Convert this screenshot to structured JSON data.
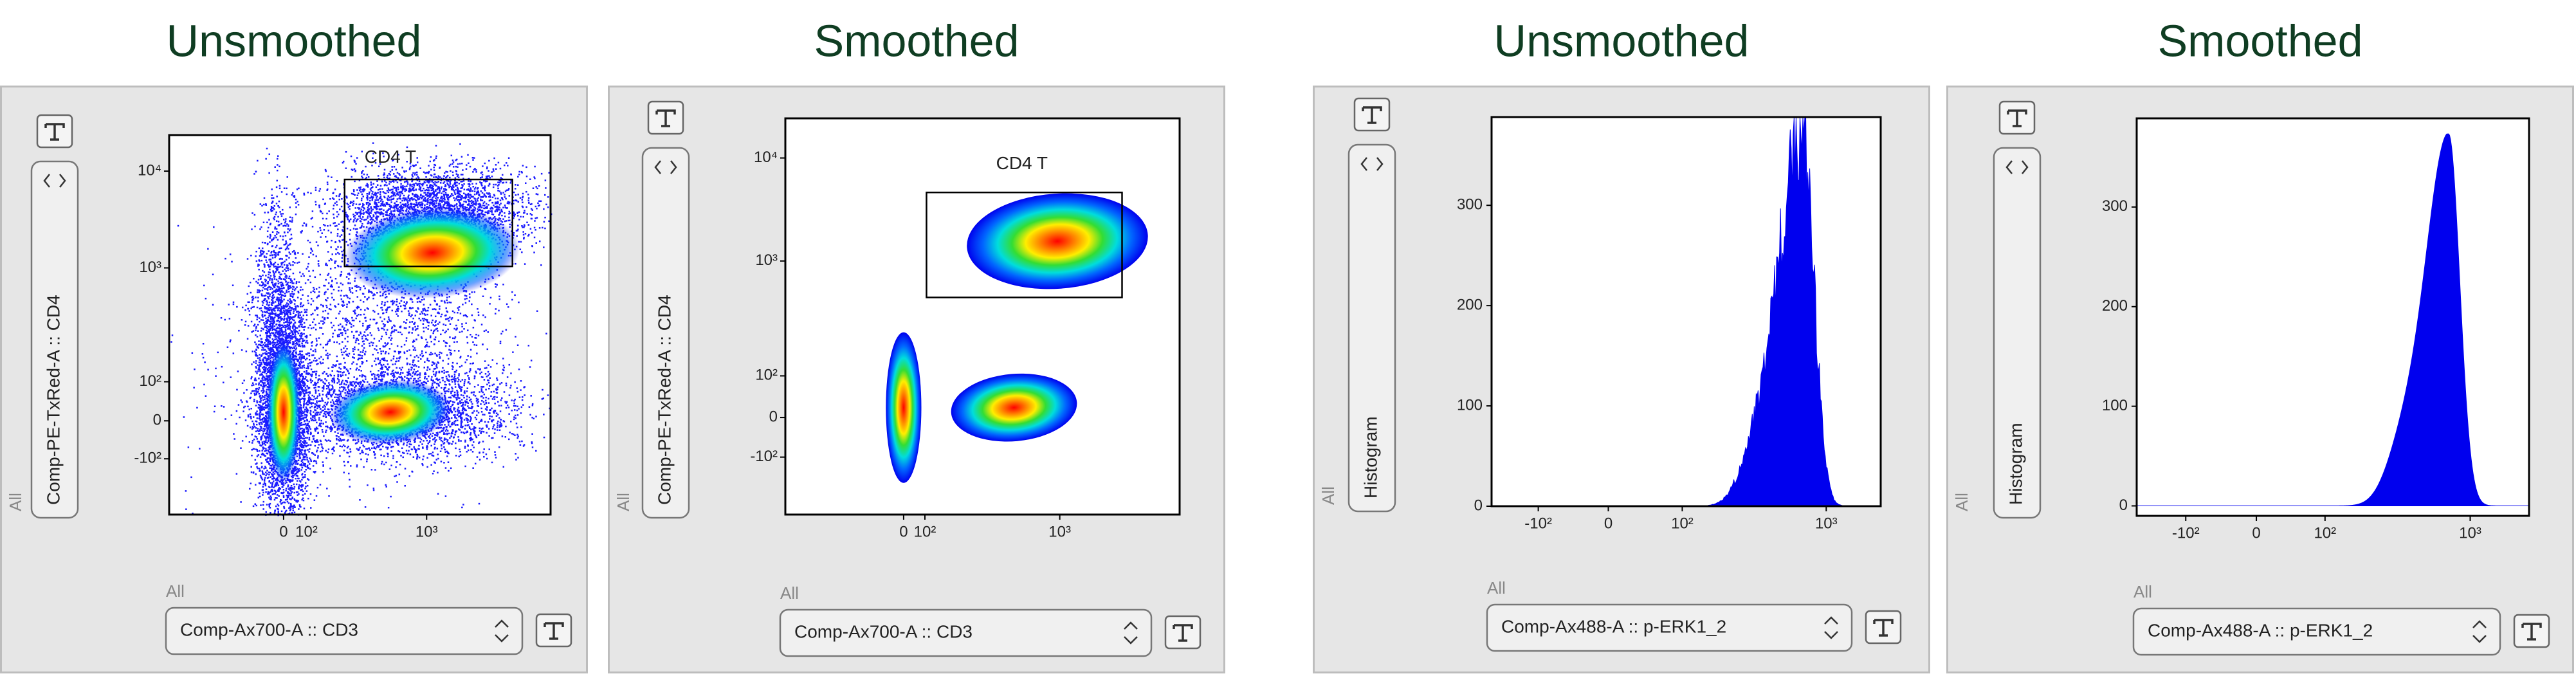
{
  "panels": [
    {
      "title": "Unsmoothed",
      "y_group": "All",
      "y_axis": "Comp-PE-TxRed-A :: CD4",
      "x_group": "All",
      "x_axis": "Comp-Ax700-A :: CD3",
      "gate": "CD4 T",
      "yticks": [
        "10⁴",
        "10³",
        "10²",
        "0",
        "-10²"
      ],
      "xticks": [
        "0",
        "10²",
        "10³"
      ]
    },
    {
      "title": "Smoothed",
      "y_group": "All",
      "y_axis": "Comp-PE-TxRed-A :: CD4",
      "x_group": "All",
      "x_axis": "Comp-Ax700-A :: CD3",
      "gate": "CD4 T",
      "yticks": [
        "10⁴",
        "10³",
        "10²",
        "0",
        "-10²"
      ],
      "xticks": [
        "0",
        "10²",
        "10³"
      ]
    },
    {
      "title": "Unsmoothed",
      "y_group": "All",
      "y_axis": "Histogram",
      "x_group": "All",
      "x_axis": "Comp-Ax488-A :: p-ERK1_2",
      "ylim": [
        0,
        388
      ],
      "yticks": [
        0,
        100,
        200,
        300
      ],
      "xticks": [
        "-10²",
        "0",
        "10²",
        "10³"
      ]
    },
    {
      "title": "Smoothed",
      "y_group": "All",
      "y_axis": "Histogram",
      "x_group": "All",
      "x_axis": "Comp-Ax488-A :: p-ERK1_2",
      "ylim": [
        -10,
        389
      ],
      "yticks": [
        0,
        100,
        200,
        300
      ],
      "xticks": [
        "-10²",
        "0",
        "10²",
        "10³"
      ]
    }
  ]
}
